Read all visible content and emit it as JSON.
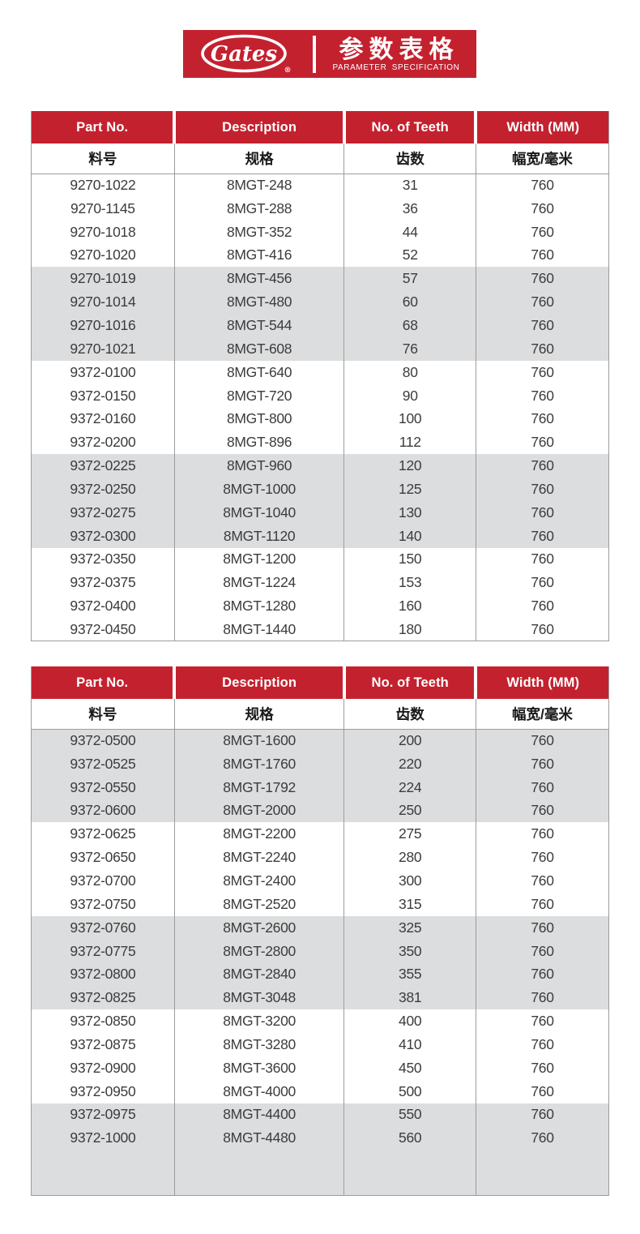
{
  "banner": {
    "brand": "Gates",
    "registered_mark": "®",
    "title_cn": "参数表格",
    "title_en": "PARAMETER SPECIFICATION"
  },
  "colors": {
    "brand_red": "#C4212F",
    "band_gray": "#DCDDDE",
    "divider_gray": "#9c9c9c",
    "text_dark": "#3c3c3c"
  },
  "headers": {
    "en": [
      "Part No.",
      "Description",
      "No. of Teeth",
      "Width  (MM)"
    ],
    "cn": [
      "料号",
      "规格",
      "齿数",
      "幅宽/毫米"
    ]
  },
  "table1": {
    "rows": [
      [
        "9270-1022",
        "8MGT-248",
        "31",
        "760"
      ],
      [
        "9270-1145",
        "8MGT-288",
        "36",
        "760"
      ],
      [
        "9270-1018",
        "8MGT-352",
        "44",
        "760"
      ],
      [
        "9270-1020",
        "8MGT-416",
        "52",
        "760"
      ],
      [
        "9270-1019",
        "8MGT-456",
        "57",
        "760"
      ],
      [
        "9270-1014",
        "8MGT-480",
        "60",
        "760"
      ],
      [
        "9270-1016",
        "8MGT-544",
        "68",
        "760"
      ],
      [
        "9270-1021",
        "8MGT-608",
        "76",
        "760"
      ],
      [
        "9372-0100",
        "8MGT-640",
        "80",
        "760"
      ],
      [
        "9372-0150",
        "8MGT-720",
        "90",
        "760"
      ],
      [
        "9372-0160",
        "8MGT-800",
        "100",
        "760"
      ],
      [
        "9372-0200",
        "8MGT-896",
        "112",
        "760"
      ],
      [
        "9372-0225",
        "8MGT-960",
        "120",
        "760"
      ],
      [
        "9372-0250",
        "8MGT-1000",
        "125",
        "760"
      ],
      [
        "9372-0275",
        "8MGT-1040",
        "130",
        "760"
      ],
      [
        "9372-0300",
        "8MGT-1120",
        "140",
        "760"
      ],
      [
        "9372-0350",
        "8MGT-1200",
        "150",
        "760"
      ],
      [
        "9372-0375",
        "8MGT-1224",
        "153",
        "760"
      ],
      [
        "9372-0400",
        "8MGT-1280",
        "160",
        "760"
      ],
      [
        "9372-0450",
        "8MGT-1440",
        "180",
        "760"
      ]
    ]
  },
  "table2": {
    "rows": [
      [
        "9372-0500",
        "8MGT-1600",
        "200",
        "760"
      ],
      [
        "9372-0525",
        "8MGT-1760",
        "220",
        "760"
      ],
      [
        "9372-0550",
        "8MGT-1792",
        "224",
        "760"
      ],
      [
        "9372-0600",
        "8MGT-2000",
        "250",
        "760"
      ],
      [
        "9372-0625",
        "8MGT-2200",
        "275",
        "760"
      ],
      [
        "9372-0650",
        "8MGT-2240",
        "280",
        "760"
      ],
      [
        "9372-0700",
        "8MGT-2400",
        "300",
        "760"
      ],
      [
        "9372-0750",
        "8MGT-2520",
        "315",
        "760"
      ],
      [
        "9372-0760",
        "8MGT-2600",
        "325",
        "760"
      ],
      [
        "9372-0775",
        "8MGT-2800",
        "350",
        "760"
      ],
      [
        "9372-0800",
        "8MGT-2840",
        "355",
        "760"
      ],
      [
        "9372-0825",
        "8MGT-3048",
        "381",
        "760"
      ],
      [
        "9372-0850",
        "8MGT-3200",
        "400",
        "760"
      ],
      [
        "9372-0875",
        "8MGT-3280",
        "410",
        "760"
      ],
      [
        "9372-0900",
        "8MGT-3600",
        "450",
        "760"
      ],
      [
        "9372-0950",
        "8MGT-4000",
        "500",
        "760"
      ],
      [
        "9372-0975",
        "8MGT-4400",
        "550",
        "760"
      ],
      [
        "9372-1000",
        "8MGT-4480",
        "560",
        "760"
      ]
    ]
  }
}
